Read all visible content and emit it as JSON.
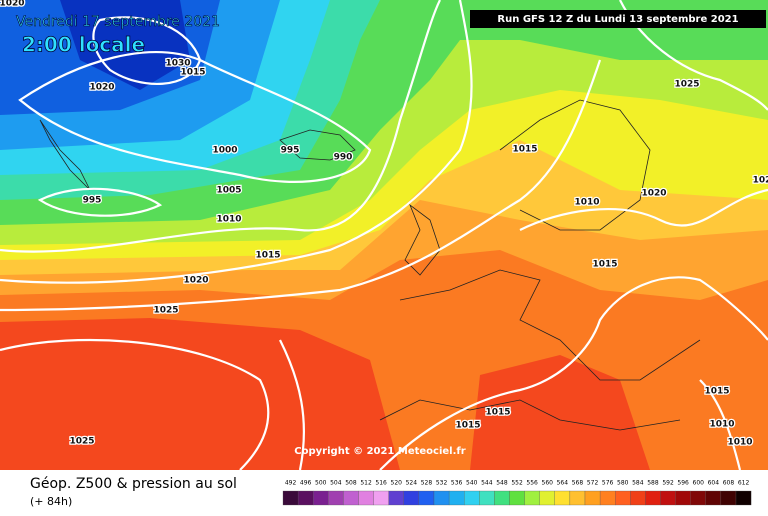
{
  "header": {
    "date": "Vendredi 17 septembre 2021",
    "time": "2:00 locale",
    "run": "Run GFS 12 Z du Lundi 13 septembre 2021"
  },
  "isobar_labels": [
    "1020",
    "1030",
    "1015",
    "1020",
    "1000",
    "995",
    "990",
    "995",
    "1005",
    "1010",
    "1015",
    "1020",
    "1025",
    "1025",
    "1015",
    "1020",
    "1010",
    "1015",
    "1015",
    "1015",
    "1025",
    "1015",
    "1010",
    "1010",
    "102"
  ],
  "copyright": "Copyright © 2021 Meteociel.fr",
  "footer": {
    "title": "Géop. Z500 & pression au sol",
    "lead": "(+ 84h)"
  },
  "legend": {
    "values": [
      492,
      496,
      500,
      504,
      508,
      512,
      516,
      520,
      524,
      528,
      532,
      536,
      540,
      544,
      548,
      552,
      556,
      560,
      564,
      568,
      572,
      576,
      580,
      584,
      588,
      592,
      596,
      600,
      604,
      608,
      612
    ]
  }
}
